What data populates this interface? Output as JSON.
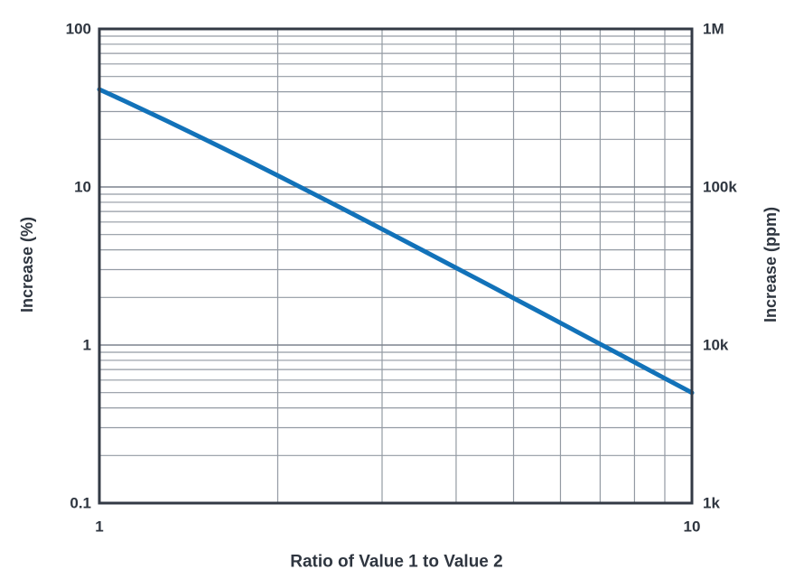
{
  "chart_data": {
    "type": "line",
    "x_axis": {
      "label": "Ratio of Value 1 to Value 2",
      "scale": "log",
      "min": 1,
      "max": 10,
      "ticks": [
        {
          "value": 1,
          "label": "1"
        },
        {
          "value": 10,
          "label": "10"
        }
      ]
    },
    "y_left_axis": {
      "label": "Increase (%)",
      "scale": "log",
      "min": 0.1,
      "max": 100,
      "ticks": [
        {
          "value": 100,
          "label": "100"
        },
        {
          "value": 10,
          "label": "10"
        },
        {
          "value": 1,
          "label": "1"
        },
        {
          "value": 0.1,
          "label": "0.1"
        }
      ]
    },
    "y_right_axis": {
      "label": "Increase (ppm)",
      "scale": "log",
      "min": 1000,
      "max": 1000000,
      "ticks": [
        {
          "value": 1000000,
          "label": "1M"
        },
        {
          "value": 100000,
          "label": "100k"
        },
        {
          "value": 10000,
          "label": "10k"
        },
        {
          "value": 1000,
          "label": "1k"
        }
      ]
    },
    "gridlines": {
      "x_minor": [
        2,
        3,
        4,
        5,
        6,
        7,
        8,
        9
      ],
      "y_minor": [
        0.2,
        0.3,
        0.4,
        0.5,
        0.6,
        0.7,
        0.8,
        0.9,
        2,
        3,
        4,
        5,
        6,
        7,
        8,
        9,
        20,
        30,
        40,
        50,
        60,
        70,
        80,
        90
      ],
      "y_major": [
        1,
        10
      ]
    },
    "series": [
      {
        "name": "increase-vs-ratio",
        "color": "#1272b9",
        "points": [
          [
            1.0,
            41.421
          ],
          [
            1.1,
            35.146
          ],
          [
            1.2,
            30.171
          ],
          [
            1.3,
            26.164
          ],
          [
            1.4,
            22.89
          ],
          [
            1.5,
            20.185
          ],
          [
            1.6,
            17.925
          ],
          [
            1.8,
            14.396
          ],
          [
            2.0,
            11.803
          ],
          [
            2.2,
            9.846
          ],
          [
            2.5,
            7.703
          ],
          [
            2.8,
            6.186
          ],
          [
            3.0,
            5.409
          ],
          [
            3.5,
            4.002
          ],
          [
            4.0,
            3.078
          ],
          [
            4.5,
            2.44
          ],
          [
            5.0,
            1.98
          ],
          [
            5.5,
            1.64
          ],
          [
            6.0,
            1.379
          ],
          [
            7.0,
            1.015
          ],
          [
            8.0,
            0.778
          ],
          [
            9.0,
            0.615
          ],
          [
            10.0,
            0.499
          ]
        ]
      }
    ],
    "legend": null,
    "grid": "on"
  },
  "colors": {
    "line": "#1272b9",
    "grid_minor": "#939aa3",
    "grid_major": "#7d838d",
    "axis_frame": "#333a45",
    "text": "#2f3640",
    "background": "#ffffff"
  }
}
